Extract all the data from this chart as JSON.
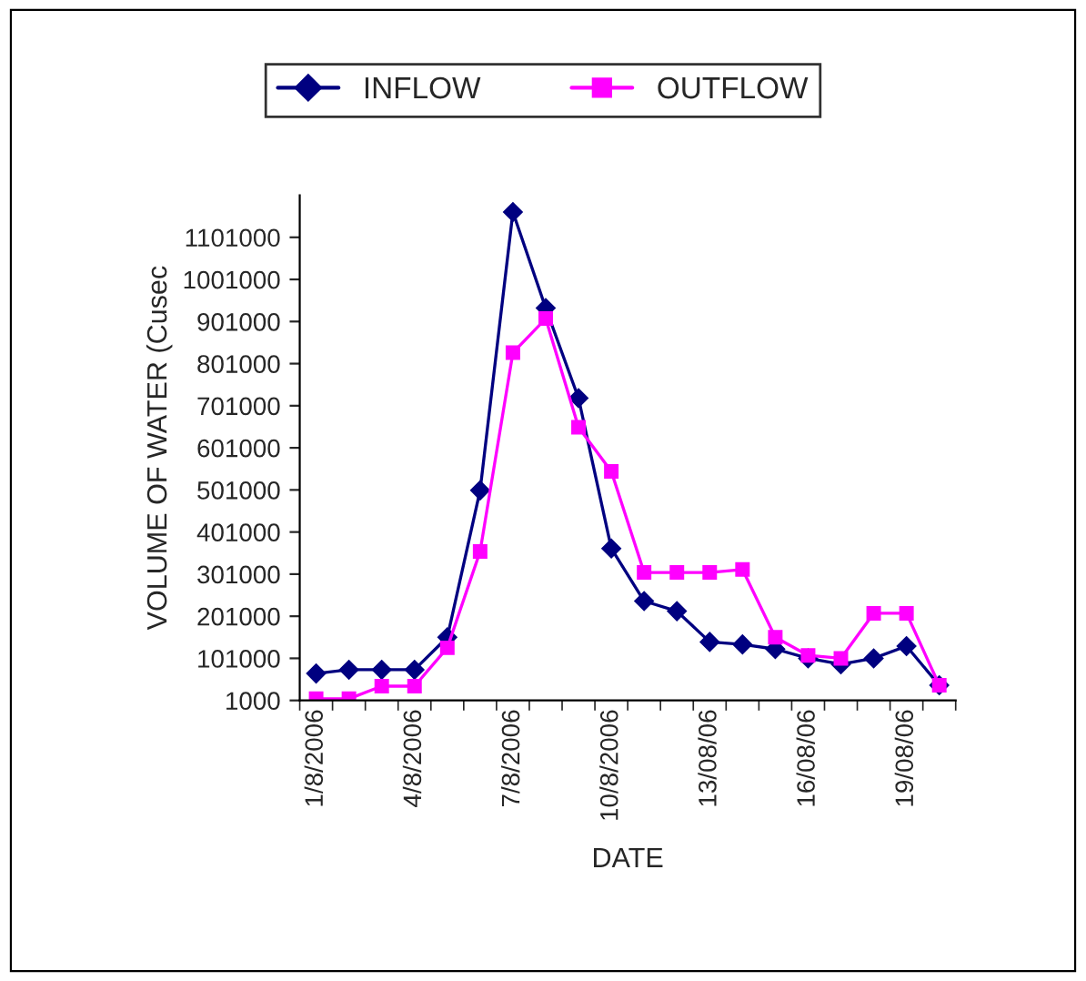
{
  "chart_data": {
    "type": "line",
    "xlabel": "DATE",
    "ylabel": "VOLUME OF WATER (Cusec",
    "categories": [
      "1/8/2006",
      null,
      null,
      "4/8/2006",
      null,
      null,
      "7/8/2006",
      null,
      null,
      "10/8/2006",
      null,
      null,
      "13/08/06",
      null,
      null,
      "16/08/06",
      null,
      null,
      "19/08/06",
      null
    ],
    "series": [
      {
        "name": "INFLOW",
        "color": "#000080",
        "marker": "diamond",
        "values": [
          65000,
          74000,
          74000,
          74000,
          151000,
          500000,
          1161000,
          933000,
          719000,
          362000,
          237000,
          213000,
          140000,
          134000,
          123000,
          101000,
          87000,
          101000,
          130000,
          37000
        ]
      },
      {
        "name": "OUTFLOW",
        "color": "#ff00ff",
        "marker": "square",
        "values": [
          5000,
          5000,
          35000,
          35000,
          126000,
          355000,
          827000,
          908000,
          650000,
          545000,
          305000,
          305000,
          305000,
          312000,
          151000,
          108000,
          101000,
          208000,
          208000,
          37000
        ]
      }
    ],
    "ylim": [
      1000,
      1201000
    ],
    "yticks": [
      1000,
      101000,
      201000,
      301000,
      401000,
      501000,
      601000,
      701000,
      801000,
      901000,
      1001000,
      1101000
    ],
    "legend": "top",
    "grid": false,
    "line_style": "solid"
  }
}
